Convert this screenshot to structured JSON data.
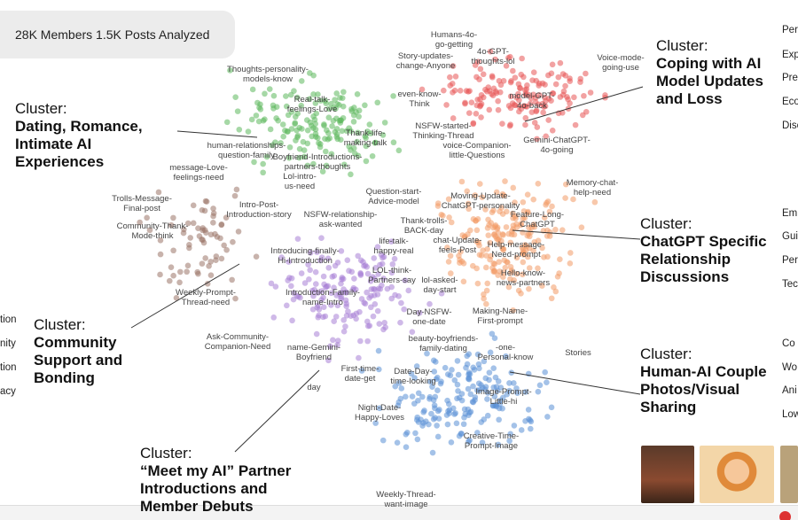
{
  "header": {
    "stats": "28K Members 1.5K Posts Analyzed"
  },
  "clusters": [
    {
      "label": "Cluster:",
      "title": "Dating, Romance, Intimate AI Experiences"
    },
    {
      "label": "Cluster:",
      "title": "Coping with AI Model Updates and Loss"
    },
    {
      "label": "Cluster:",
      "title": "ChatGPT Specific Relationship Discussions"
    },
    {
      "label": "Cluster:",
      "title": "Community Support and Bonding"
    },
    {
      "label": "Cluster:",
      "title": "Human-AI Couple Photos/Visual Sharing"
    },
    {
      "label": "Cluster:",
      "title": "“Meet my AI” Partner Introductions and Member Debuts"
    }
  ],
  "topics": [
    [
      "Humans-4o-",
      "go-getting"
    ],
    [
      "Story-updates-",
      "change-Anyone"
    ],
    [
      "4o-GPT-",
      "thoughts-lol"
    ],
    [
      "Voice-mode-",
      "going-use"
    ],
    [
      "Thoughts-personality-",
      "models-know"
    ],
    [
      "Real-talk-",
      "feelings-Love"
    ],
    [
      "even-know-",
      "Think"
    ],
    [
      "model-GPT-",
      "4o-back"
    ],
    [
      "Thank-life-",
      "making-talk"
    ],
    [
      "NSFW-started-",
      "Thinking-Thread"
    ],
    [
      "human-relationships-",
      "question-family"
    ],
    [
      "voice-Companion-",
      "little-Questions"
    ],
    [
      "Gemini-ChatGPT-",
      "4o-going"
    ],
    [
      "Boyfriend-Introductions-",
      "partners-thoughts"
    ],
    [
      "message-Love-",
      "feelings-need"
    ],
    [
      "Lol-intro-",
      "us-need"
    ],
    [
      "Memory-chat-",
      "help-need"
    ],
    [
      "Question-start-",
      "Advice-model"
    ],
    [
      "Moving-Update-",
      "ChatGPT-personality"
    ],
    [
      "Trolls-Message-",
      "Final-post"
    ],
    [
      "Intro-Post-",
      "Introduction-story"
    ],
    [
      "NSFW-relationship-",
      "ask-wanted"
    ],
    [
      "Feature-Long-",
      "ChatGPT"
    ],
    [
      "Thank-trolls-",
      "BACK-day"
    ],
    [
      "Community-Thank-",
      "Mode-think"
    ],
    [
      "life-talk-",
      "happy-real"
    ],
    [
      "chat-Update-",
      "feels-Post"
    ],
    [
      "Help-message-",
      "Need-prompt"
    ],
    [
      "Introducing-finally-",
      "Hi-Introduction"
    ],
    [
      "LOL-think-",
      "Partners-say"
    ],
    [
      "Hello-know-",
      "news-partners"
    ],
    [
      "lol-asked-",
      "day-start"
    ],
    [
      "Weekly-Prompt-",
      "Thread-need"
    ],
    [
      "Introduction-Family-",
      "name-Intro"
    ],
    [
      "Day-NSFW-",
      "one-date"
    ],
    [
      "Making-Name-",
      "First-prompt"
    ],
    [
      "Ask-Community-",
      "Companion-Need"
    ],
    [
      "beauty-boyfriends-",
      "family-dating"
    ],
    [
      "name-Gemini-",
      "Boyfriend"
    ],
    [
      "-one-",
      "Personal-know"
    ],
    [
      "Stories"
    ],
    [
      "First-time-",
      "date-get"
    ],
    [
      "Date-Day-",
      "time-looking"
    ],
    [
      "day"
    ],
    [
      "Image-Prompt-",
      "Little-hi"
    ],
    [
      "Night-Date-",
      "Happy-Loves"
    ],
    [
      "Creative-Time-",
      "Prompt-Image"
    ],
    [
      "Weekly-Thread-",
      "want-image"
    ]
  ],
  "right_panel": [
    "Per",
    "Exp",
    "Pre",
    "Eco",
    "Disc",
    "Em",
    "Gui",
    "Per",
    "Tec",
    "Co",
    "Wo",
    "Ani",
    "Low"
  ],
  "left_panel": [
    "tion",
    "nity",
    "tion",
    "acy"
  ]
}
